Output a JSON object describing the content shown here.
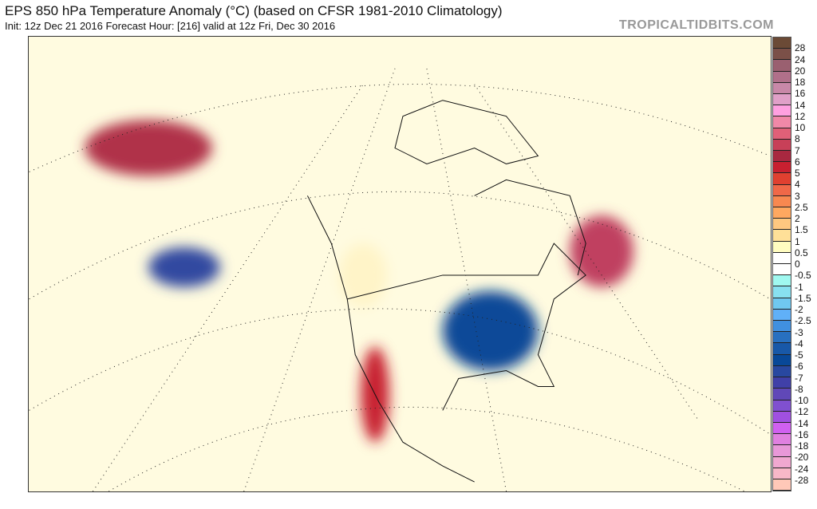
{
  "header": {
    "title": "EPS 850 hPa Temperature Anomaly (°C) (based on CFSR 1981-2010 Climatology)",
    "subtitle": "Init: 12z Dec 21 2016   Forecast Hour: [216]   valid at 12z Fri, Dec 30 2016",
    "brand": "TROPICALTIDBITS.COM"
  },
  "colorbar": {
    "labels": [
      "28",
      "24",
      "20",
      "18",
      "16",
      "14",
      "12",
      "10",
      "8",
      "7",
      "6",
      "5",
      "4",
      "3",
      "2.5",
      "2",
      "1.5",
      "1",
      "0.5",
      "0",
      "-0.5",
      "-1",
      "-1.5",
      "-2",
      "-2.5",
      "-3",
      "-4",
      "-5",
      "-6",
      "-7",
      "-8",
      "-10",
      "-12",
      "-14",
      "-16",
      "-18",
      "-20",
      "-24",
      "-28"
    ],
    "colors": [
      "#6b4a36",
      "#7b5048",
      "#9a6070",
      "#b0708a",
      "#c888a8",
      "#e0a0c8",
      "#ffa0e0",
      "#f088a8",
      "#e06078",
      "#c84058",
      "#a82840",
      "#c82030",
      "#e04030",
      "#f06848",
      "#f88850",
      "#ffa860",
      "#ffc880",
      "#ffe098",
      "#fffcc0",
      "#ffffff",
      "#ffffff",
      "#a0f8f0",
      "#88e0f0",
      "#70c8f0",
      "#60b0f8",
      "#4090e0",
      "#2870c0",
      "#1858a8",
      "#084898",
      "#2848a0",
      "#4040a8",
      "#6048b8",
      "#8050d0",
      "#a050e0",
      "#d060f0",
      "#e080e0",
      "#e898d8",
      "#f0a8d0",
      "#f8b8c8",
      "#ffc8b8"
    ]
  }
}
